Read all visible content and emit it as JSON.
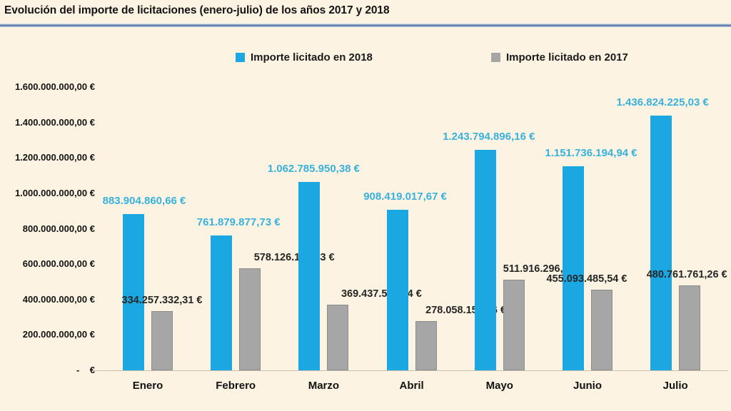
{
  "header": {
    "title": "Evolución del importe de licitaciones (enero-julio) de los años 2017 y 2018"
  },
  "legend": [
    {
      "label": "Importe licitado en 2018",
      "color": "#1BA7E1"
    },
    {
      "label": "Importe licitado en 2017",
      "color": "#A6A6A6"
    }
  ],
  "chart_data": {
    "type": "bar",
    "title": "Evolución del importe de licitaciones (enero-julio) de los años 2017 y 2018",
    "categories": [
      "Enero",
      "Febrero",
      "Marzo",
      "Abril",
      "Mayo",
      "Junio",
      "Julio"
    ],
    "series": [
      {
        "name": "Importe licitado en 2018",
        "color": "#1BA7E1",
        "values": [
          883904860.66,
          761879877.73,
          1062785950.38,
          908419017.67,
          1243794896.16,
          1151736194.94,
          1436824225.03
        ],
        "labels": [
          "883.904.860,66 €",
          "761.879.877,73 €",
          "1.062.785.950,38 €",
          "908.419.017,67 €",
          "1.243.794.896,16 €",
          "1.151.736.194,94 €",
          "1.436.824.225,03 €"
        ]
      },
      {
        "name": "Importe licitado en 2017",
        "color": "#A6A6A6",
        "values": [
          334257332.31,
          578126104.43,
          369437576.54,
          278058152.96,
          511916296.56,
          455093485.54,
          480761761.26
        ],
        "labels": [
          "334.257.332,31 €",
          "578.126.104,43 €",
          "369.437.576,54 €",
          "278.058.152,96 €",
          "511.916.296,56 €",
          "455.093.485,54 €",
          "480.761.761,26 €"
        ]
      }
    ],
    "y_axis": {
      "min": 0,
      "max": 1600000000,
      "step": 200000000,
      "ticks": [
        "-    €",
        "200.000.000,00 €",
        "400.000.000,00 €",
        "600.000.000,00 €",
        "800.000.000,00 €",
        "1.000.000.000,00 €",
        "1.200.000.000,00 €",
        "1.400.000.000,00 €",
        "1.600.000.000,00 €"
      ]
    },
    "legend_position": "top",
    "grid": false,
    "label_color_2018": "#38B2DD",
    "label_color_2017": "#262626",
    "label_x_offsets_2018": [
      -5,
      4,
      -14,
      -9,
      -15,
      5,
      -18
    ],
    "label_x_offsets_2017": [
      20,
      82,
      81,
      76,
      61,
      -1,
      16
    ]
  },
  "colors": {
    "background": "#FCF3E2",
    "separator_dark": "#54749f",
    "separator_light": "#cddcee",
    "axis_text": "#131313",
    "baseline": "#c8c0ad"
  }
}
